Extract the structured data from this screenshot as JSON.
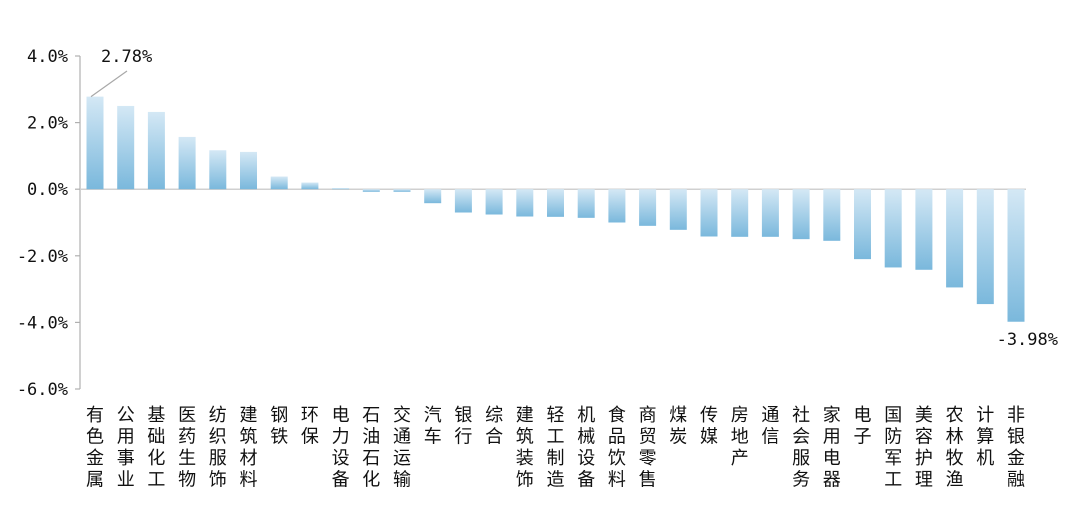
{
  "chart_data": {
    "type": "bar",
    "categories": [
      "有色金属",
      "公用事业",
      "基础化工",
      "医药生物",
      "纺织服饰",
      "建筑材料",
      "钢铁",
      "环保",
      "电力设备",
      "石油石化",
      "交通运输",
      "汽车",
      "银行",
      "综合",
      "建筑装饰",
      "轻工制造",
      "机械设备",
      "食品饮料",
      "商贸零售",
      "煤炭",
      "传媒",
      "房地产",
      "通信",
      "社会服务",
      "家用电器",
      "电子",
      "国防军工",
      "美容护理",
      "农林牧渔",
      "计算机",
      "非银金融"
    ],
    "values": [
      2.78,
      2.5,
      2.32,
      1.57,
      1.17,
      1.12,
      0.38,
      0.2,
      0.03,
      -0.08,
      -0.08,
      -0.42,
      -0.7,
      -0.76,
      -0.82,
      -0.83,
      -0.86,
      -1.0,
      -1.1,
      -1.22,
      -1.42,
      -1.43,
      -1.43,
      -1.5,
      -1.55,
      -2.1,
      -2.35,
      -2.42,
      -2.95,
      -3.45,
      -3.98
    ],
    "y_ticks": [
      "4.0%",
      "2.0%",
      "0.0%",
      "-2.0%",
      "-4.0%",
      "-6.0%"
    ],
    "ylim": [
      -6,
      4
    ],
    "annotations": [
      "2.78%",
      "-3.98%"
    ],
    "colors": {
      "bar_light": "#d6e9f5",
      "bar_dark": "#79b8db",
      "axis": "#b0b0b0",
      "zero_line": "#d0d0d0"
    },
    "title": "",
    "xlabel": "",
    "ylabel": ""
  }
}
